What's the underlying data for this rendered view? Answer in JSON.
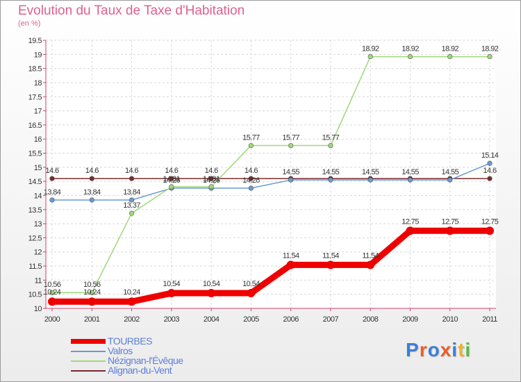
{
  "title": "Evolution du Taux de Taxe d'Habitation",
  "unit_label": "(en %)",
  "brand": {
    "text": "Proxiti",
    "colors": [
      "#3a7fd6",
      "#e8602a",
      "#3a7fd6",
      "#e8602a",
      "#3a7fd6",
      "#f2b02a",
      "#58b848"
    ]
  },
  "chart_data": {
    "type": "line",
    "x": [
      2000,
      2001,
      2002,
      2003,
      2004,
      2005,
      2006,
      2007,
      2008,
      2009,
      2010,
      2011
    ],
    "ylim": [
      10,
      19.5
    ],
    "yticks": [
      "10",
      "10.5",
      "11",
      "11.5",
      "12",
      "12.5",
      "13",
      "13.5",
      "14",
      "14.5",
      "15",
      "15.5",
      "16",
      "16.5",
      "17",
      "17.5",
      "18",
      "18.5",
      "19",
      "19.5"
    ],
    "grid": true,
    "legend_position": "bottom-left",
    "series": [
      {
        "name": "Alignan-du-Vent",
        "color": "#7a2a2a",
        "values": [
          14.6,
          14.6,
          14.6,
          14.6,
          14.6,
          14.6,
          14.6,
          14.6,
          14.6,
          14.6,
          14.6,
          14.6
        ],
        "labels": [
          "14.6",
          "14.6",
          "14.6",
          "14.6",
          "14.6",
          "14.6",
          "",
          "",
          "",
          "",
          "",
          "14.6"
        ]
      },
      {
        "name": "Valros",
        "color": "#6a9ad2",
        "values": [
          13.84,
          13.84,
          13.84,
          14.26,
          14.26,
          14.26,
          14.55,
          14.55,
          14.55,
          14.55,
          14.55,
          15.14
        ],
        "labels": [
          "13.84",
          "13.84",
          "13.84",
          "14.26",
          "14.26",
          "14.26",
          "14.55",
          "14.55",
          "14.55",
          "14.55",
          "14.55",
          "15.14"
        ]
      },
      {
        "name": "Nézignan-l'Évêque",
        "color": "#9ed87a",
        "values": [
          10.56,
          10.56,
          13.37,
          14.31,
          14.31,
          15.77,
          15.77,
          15.77,
          18.92,
          18.92,
          18.92,
          18.92
        ],
        "labels": [
          "10.56",
          "10.56",
          "13.37",
          "14.31",
          "14.31",
          "15.77",
          "15.77",
          "15.77",
          "18.92",
          "18.92",
          "18.92",
          "18.92"
        ]
      },
      {
        "name": "TOURBES",
        "color": "#ee0000",
        "values": [
          10.24,
          10.24,
          10.24,
          10.54,
          10.54,
          10.54,
          11.54,
          11.54,
          11.54,
          12.75,
          12.75,
          12.75
        ],
        "labels": [
          "10.24",
          "10.24",
          "10.24",
          "10.54",
          "10.54",
          "10.54",
          "11.54",
          "11.54",
          "11.54",
          "12.75",
          "12.75",
          "12.75"
        ]
      }
    ],
    "legend": [
      "TOURBES",
      "Valros",
      "Nézignan-l'Évêque",
      "Alignan-du-Vent"
    ]
  }
}
